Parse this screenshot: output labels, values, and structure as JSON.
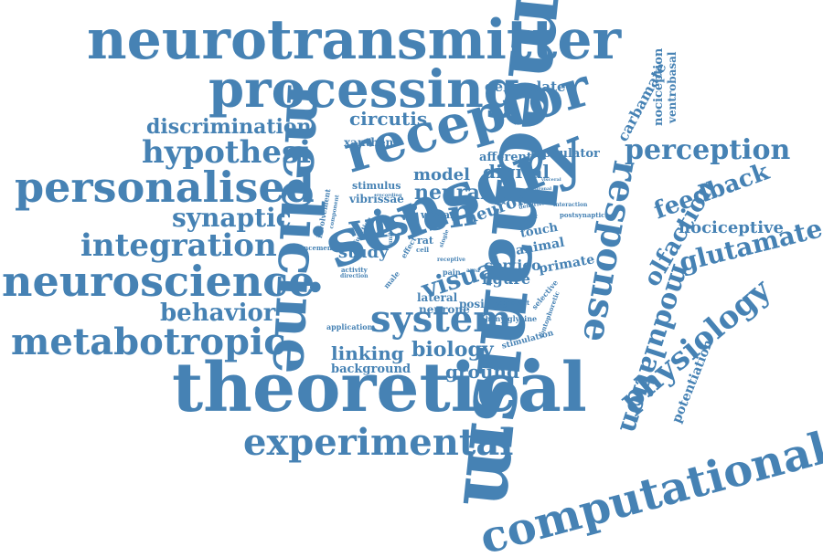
{
  "color": "#4682b4",
  "words": [
    {
      "text": "neurotransmitter"
    },
    {
      "text": "processing"
    },
    {
      "text": "mechanism"
    },
    {
      "text": "theoretical"
    },
    {
      "text": "sensory"
    },
    {
      "text": "medicine"
    },
    {
      "text": "receptor"
    },
    {
      "text": "personalised"
    },
    {
      "text": "neuroscience"
    },
    {
      "text": "metabotropic"
    },
    {
      "text": "computational"
    },
    {
      "text": "experimental"
    },
    {
      "text": "system"
    },
    {
      "text": "vision"
    },
    {
      "text": "integration"
    },
    {
      "text": "hypothesi"
    },
    {
      "text": "discrimination"
    },
    {
      "text": "synaptic"
    },
    {
      "text": "behavior"
    },
    {
      "text": "response"
    },
    {
      "text": "perception"
    },
    {
      "text": "feedback"
    },
    {
      "text": "glutamate"
    },
    {
      "text": "physiology"
    },
    {
      "text": "modulation"
    },
    {
      "text": "olfaction"
    },
    {
      "text": "nociceptive"
    },
    {
      "text": "circutis"
    },
    {
      "text": "geniculate"
    },
    {
      "text": "visual"
    },
    {
      "text": "neural"
    },
    {
      "text": "model"
    },
    {
      "text": "digital"
    },
    {
      "text": "linking"
    },
    {
      "text": "biology"
    },
    {
      "text": "ground"
    },
    {
      "text": "background"
    },
    {
      "text": "study"
    },
    {
      "text": "neuron"
    },
    {
      "text": "cortico"
    },
    {
      "text": "figure"
    },
    {
      "text": "primate"
    },
    {
      "text": "animal"
    },
    {
      "text": "touch"
    },
    {
      "text": "lateral"
    },
    {
      "text": "neurone"
    },
    {
      "text": "positive"
    },
    {
      "text": "carbamate"
    },
    {
      "text": "nociception"
    },
    {
      "text": "ventrobasal"
    },
    {
      "text": "potentiation"
    },
    {
      "text": "afferent"
    },
    {
      "text": "modulator"
    },
    {
      "text": "xanthene"
    },
    {
      "text": "stimulus"
    },
    {
      "text": "vibrissae"
    },
    {
      "text": "wistar"
    },
    {
      "text": "rat"
    },
    {
      "text": "enhancement"
    },
    {
      "text": "application"
    },
    {
      "text": "phenylglycine"
    },
    {
      "text": "stimulation"
    },
    {
      "text": "iontophoretic"
    },
    {
      "text": "postsynaptic"
    },
    {
      "text": "interaction"
    },
    {
      "text": "selective"
    },
    {
      "text": "constant"
    },
    {
      "text": "pain"
    },
    {
      "text": "area"
    },
    {
      "text": "activity"
    },
    {
      "text": "direction"
    },
    {
      "text": "male"
    },
    {
      "text": "effect"
    },
    {
      "text": "cell"
    },
    {
      "text": "involvement"
    },
    {
      "text": "component"
    },
    {
      "text": "function"
    },
    {
      "text": "recording"
    },
    {
      "text": "receptive"
    },
    {
      "text": "single"
    },
    {
      "text": "dendrite"
    },
    {
      "text": "unit"
    },
    {
      "text": "neuronal"
    },
    {
      "text": "visceral"
    },
    {
      "text": "motor"
    }
  ]
}
